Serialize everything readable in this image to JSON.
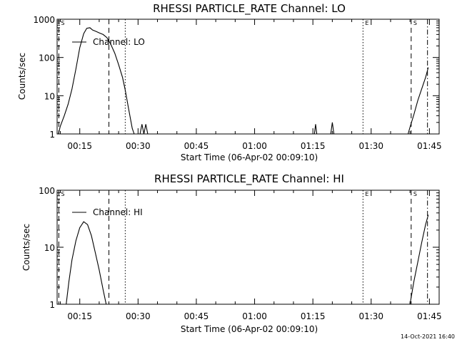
{
  "footer_timestamp": "14-Oct-2021 16:40",
  "colors": {
    "background": "#ffffff",
    "ink": "#000000"
  },
  "chart_data": [
    {
      "type": "line",
      "title": "RHESSI PARTICLE_RATE Channel: LO",
      "xlabel": "Start Time (06-Apr-02 00:09:10)",
      "ylabel": "Counts/sec",
      "yscale": "log",
      "ylim": [
        1,
        1000
      ],
      "xlim_min": [
        9.17,
        107.5
      ],
      "yticks": [
        1,
        10,
        100,
        1000
      ],
      "ytick_labels": [
        "1",
        "10",
        "100",
        "1000"
      ],
      "xticks_min": [
        15,
        30,
        45,
        60,
        75,
        90,
        105
      ],
      "xtick_labels": [
        "00:15",
        "00:30",
        "00:45",
        "01:00",
        "01:15",
        "01:30",
        "01:45"
      ],
      "legend": {
        "label": "Channel: LO",
        "position": "top-left"
      },
      "markers": [
        {
          "label": "S",
          "t": 9.6,
          "style": "dashed"
        },
        {
          "label": "",
          "t": 22.5,
          "style": "dashed"
        },
        {
          "label": "",
          "t": 26.7,
          "style": "dotted"
        },
        {
          "label": "E",
          "t": 87.9,
          "style": "dotted"
        },
        {
          "label": "S",
          "t": 100.3,
          "style": "dashed"
        },
        {
          "label": "",
          "t": 104.5,
          "style": "dashdot"
        }
      ],
      "series": [
        {
          "name": "Channel: LO",
          "segments": [
            [
              [
                9.5,
                1
              ],
              [
                10,
                1.6
              ],
              [
                11,
                3
              ],
              [
                12,
                6
              ],
              [
                13,
                15
              ],
              [
                14,
                50
              ],
              [
                15,
                180
              ],
              [
                16,
                420
              ],
              [
                16.8,
                580
              ],
              [
                17.6,
                600
              ],
              [
                18.3,
                520
              ],
              [
                19.2,
                480
              ],
              [
                20,
                440
              ],
              [
                21,
                400
              ],
              [
                22,
                330
              ],
              [
                23,
                220
              ],
              [
                24,
                130
              ],
              [
                25,
                65
              ],
              [
                26,
                30
              ],
              [
                26.7,
                14
              ],
              [
                27.5,
                5
              ],
              [
                28.5,
                1.4
              ],
              [
                29,
                1
              ]
            ],
            [
              [
                30.5,
                1
              ],
              [
                31,
                1.8
              ],
              [
                31.5,
                1
              ],
              [
                32,
                1.8
              ],
              [
                32.5,
                1
              ]
            ],
            [
              [
                75.4,
                1
              ],
              [
                75.7,
                1.8
              ],
              [
                76,
                1
              ]
            ],
            [
              [
                79.6,
                1
              ],
              [
                80,
                2
              ],
              [
                80.4,
                1
              ]
            ],
            [
              [
                99.5,
                1
              ],
              [
                100,
                1.5
              ],
              [
                101,
                3.2
              ],
              [
                102,
                7.5
              ],
              [
                103,
                15
              ],
              [
                104,
                30
              ],
              [
                104.7,
                55
              ]
            ]
          ]
        }
      ]
    },
    {
      "type": "line",
      "title": "RHESSI PARTICLE_RATE Channel: HI",
      "xlabel": "Start Time (06-Apr-02 00:09:10)",
      "ylabel": "Counts/sec",
      "yscale": "log",
      "ylim": [
        1,
        100
      ],
      "xlim_min": [
        9.17,
        107.5
      ],
      "yticks": [
        1,
        10,
        100
      ],
      "ytick_labels": [
        "1",
        "10",
        "100"
      ],
      "xticks_min": [
        15,
        30,
        45,
        60,
        75,
        90,
        105
      ],
      "xtick_labels": [
        "00:15",
        "00:30",
        "00:45",
        "01:00",
        "01:15",
        "01:30",
        "01:45"
      ],
      "legend": {
        "label": "Channel: HI",
        "position": "top-left"
      },
      "markers": [
        {
          "label": "S",
          "t": 9.6,
          "style": "dashed"
        },
        {
          "label": "",
          "t": 22.5,
          "style": "dashed"
        },
        {
          "label": "",
          "t": 26.7,
          "style": "dotted"
        },
        {
          "label": "E",
          "t": 87.9,
          "style": "dotted"
        },
        {
          "label": "S",
          "t": 100.3,
          "style": "dashed"
        },
        {
          "label": "",
          "t": 104.5,
          "style": "dashdot"
        }
      ],
      "series": [
        {
          "name": "Channel: HI",
          "segments": [
            [
              [
                11.5,
                1
              ],
              [
                12.2,
                2.5
              ],
              [
                13,
                6
              ],
              [
                14,
                13
              ],
              [
                15,
                22
              ],
              [
                16,
                28
              ],
              [
                17,
                25
              ],
              [
                18,
                16
              ],
              [
                19,
                8
              ],
              [
                20,
                4
              ],
              [
                21,
                1.8
              ],
              [
                21.8,
                1
              ]
            ],
            [
              [
                100,
                1
              ],
              [
                101,
                2.5
              ],
              [
                102,
                5.5
              ],
              [
                103,
                12
              ],
              [
                104,
                25
              ],
              [
                104.7,
                37
              ]
            ]
          ]
        }
      ]
    }
  ]
}
